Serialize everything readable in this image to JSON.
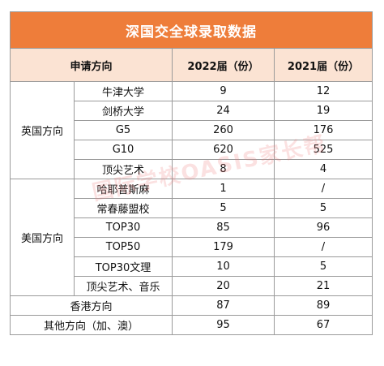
{
  "title": "深国交全球录取数据",
  "headers": {
    "direction": "申请方向",
    "y2022": "2022届（份）",
    "y2021": "2021届（份）"
  },
  "groups": [
    {
      "name": "英国方向",
      "rows": [
        {
          "label": "牛津大学",
          "y2022": "9",
          "y2021": "12"
        },
        {
          "label": "剑桥大学",
          "y2022": "24",
          "y2021": "19"
        },
        {
          "label": "G5",
          "y2022": "260",
          "y2021": "176"
        },
        {
          "label": "G10",
          "y2022": "620",
          "y2021": "525"
        },
        {
          "label": "顶尖艺术",
          "y2022": "8",
          "y2021": "4"
        }
      ]
    },
    {
      "name": "美国方向",
      "rows": [
        {
          "label": "哈耶普斯麻",
          "y2022": "1",
          "y2021": "/"
        },
        {
          "label": "常春藤盟校",
          "y2022": "5",
          "y2021": "5"
        },
        {
          "label": "TOP30",
          "y2022": "85",
          "y2021": "96"
        },
        {
          "label": "TOP50",
          "y2022": "179",
          "y2021": "/"
        },
        {
          "label": "TOP30文理",
          "y2022": "10",
          "y2021": "5"
        },
        {
          "label": "顶尖艺术、音乐",
          "y2022": "20",
          "y2021": "21"
        }
      ]
    }
  ],
  "single_rows": [
    {
      "label": "香港方向",
      "y2022": "87",
      "y2021": "89"
    },
    {
      "label": "其他方向（加、澳）",
      "y2022": "95",
      "y2021": "67"
    }
  ],
  "watermark": "国际学校OASIS家长帮",
  "colors": {
    "title_bg": "#ee7d3a",
    "header_bg": "#fbe3d3",
    "border": "#9a9a9a"
  }
}
